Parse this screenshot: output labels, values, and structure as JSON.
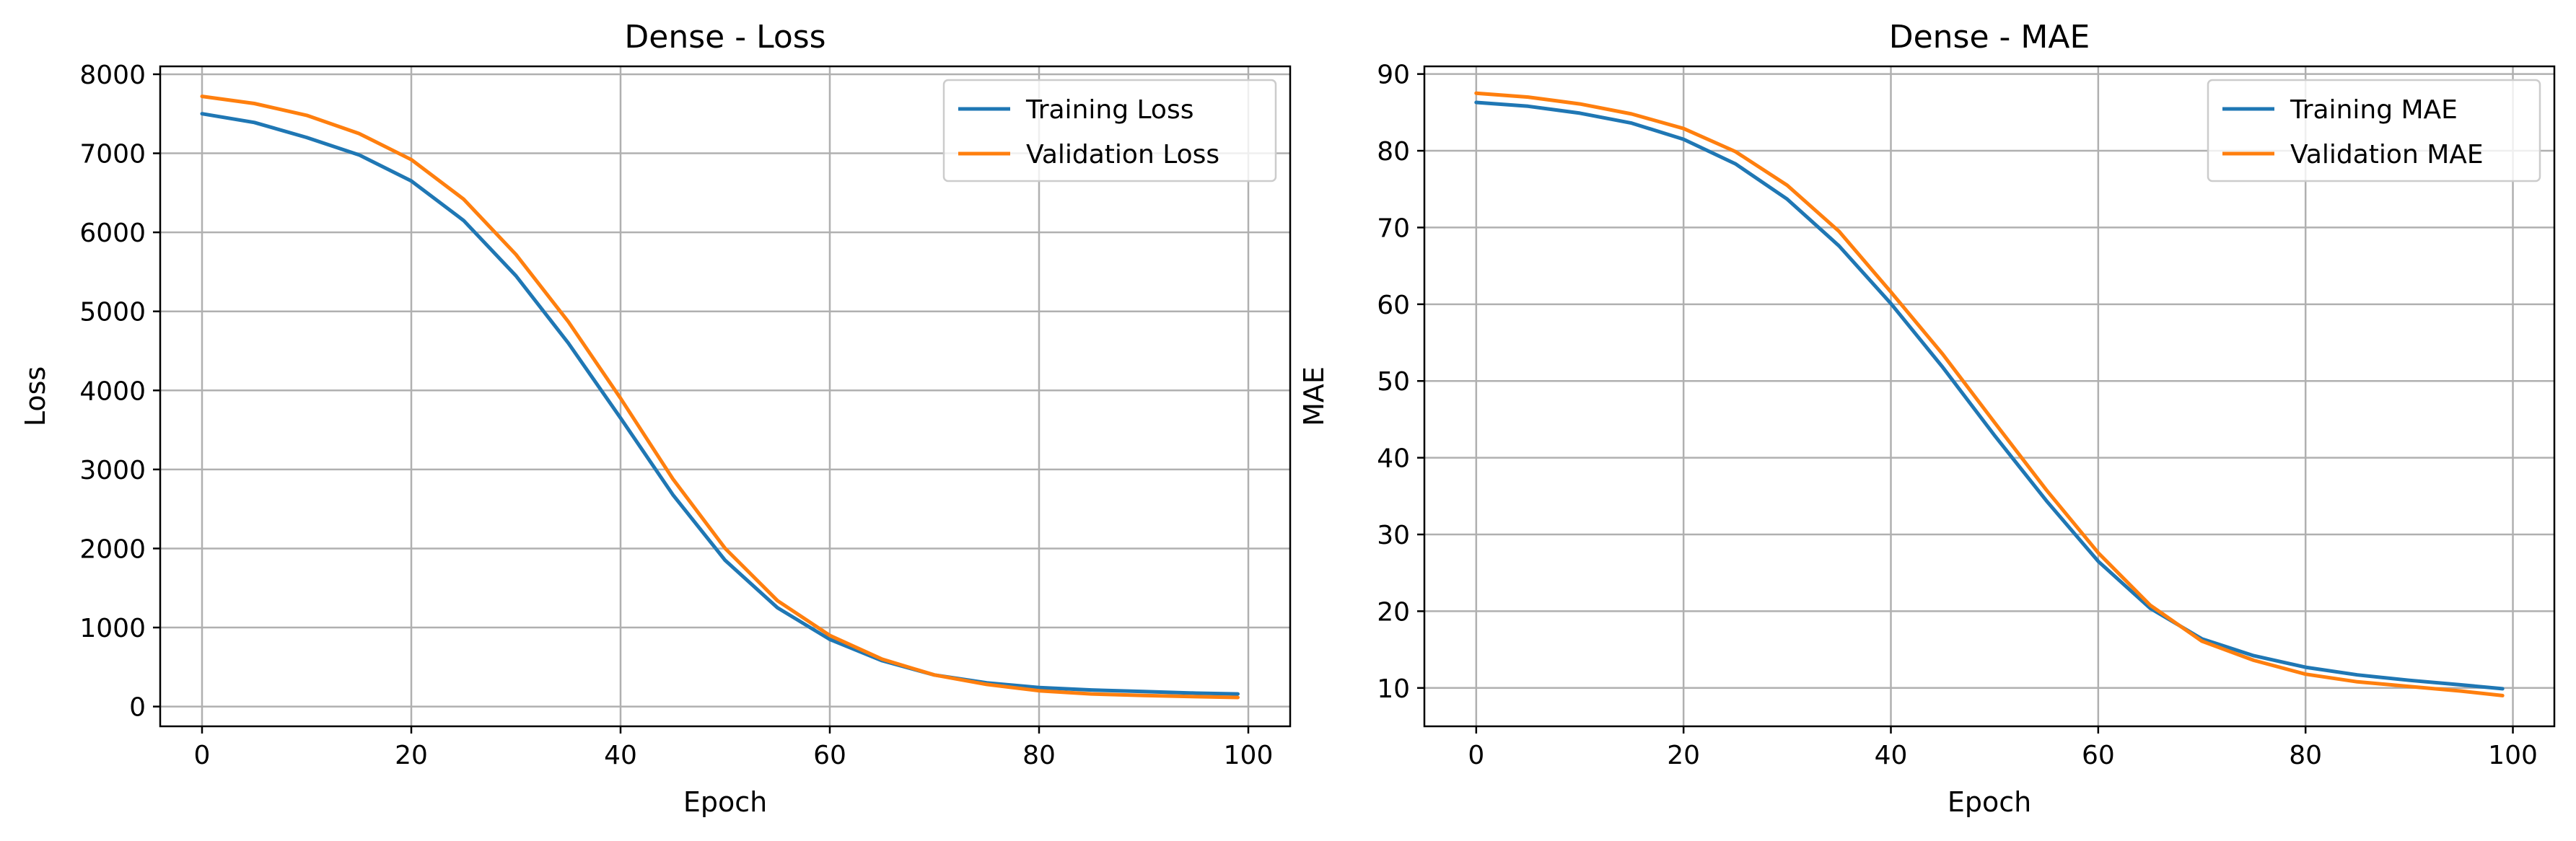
{
  "chart_data": [
    {
      "type": "line",
      "title": "Dense - Loss",
      "xlabel": "Epoch",
      "ylabel": "Loss",
      "xlim": [
        -4,
        104
      ],
      "ylim": [
        -250,
        8100
      ],
      "xticks": [
        0,
        20,
        40,
        60,
        80,
        100
      ],
      "yticks": [
        0,
        1000,
        2000,
        3000,
        4000,
        5000,
        6000,
        7000,
        8000
      ],
      "grid": true,
      "legend_position": "upper right",
      "series": [
        {
          "name": "Training Loss",
          "color": "#1f77b4",
          "x": [
            0,
            5,
            10,
            15,
            20,
            25,
            30,
            35,
            40,
            45,
            50,
            55,
            60,
            65,
            70,
            75,
            80,
            85,
            90,
            95,
            99
          ],
          "values": [
            7500,
            7390,
            7200,
            6980,
            6650,
            6150,
            5450,
            4600,
            3650,
            2680,
            1850,
            1250,
            850,
            580,
            400,
            300,
            240,
            210,
            190,
            170,
            160
          ]
        },
        {
          "name": "Validation Loss",
          "color": "#ff7f0e",
          "x": [
            0,
            5,
            10,
            15,
            20,
            25,
            30,
            35,
            40,
            45,
            50,
            55,
            60,
            65,
            70,
            75,
            80,
            85,
            90,
            95,
            99
          ],
          "values": [
            7720,
            7630,
            7480,
            7250,
            6920,
            6420,
            5720,
            4870,
            3900,
            2880,
            2000,
            1340,
            900,
            600,
            400,
            280,
            200,
            160,
            140,
            125,
            115
          ]
        }
      ]
    },
    {
      "type": "line",
      "title": "Dense - MAE",
      "xlabel": "Epoch",
      "ylabel": "MAE",
      "xlim": [
        -5,
        104
      ],
      "ylim": [
        5,
        91
      ],
      "xticks": [
        0,
        20,
        40,
        60,
        80,
        100
      ],
      "yticks": [
        10,
        20,
        30,
        40,
        50,
        60,
        70,
        80,
        90
      ],
      "grid": true,
      "legend_position": "upper right",
      "series": [
        {
          "name": "Training MAE",
          "color": "#1f77b4",
          "x": [
            0,
            5,
            10,
            15,
            20,
            25,
            30,
            35,
            40,
            45,
            50,
            55,
            60,
            65,
            70,
            75,
            80,
            85,
            90,
            95,
            99
          ],
          "values": [
            86.3,
            85.8,
            84.9,
            83.6,
            81.5,
            78.3,
            73.7,
            67.6,
            60.1,
            51.8,
            42.9,
            34.4,
            26.5,
            20.4,
            16.4,
            14.2,
            12.7,
            11.7,
            11.0,
            10.4,
            9.9
          ]
        },
        {
          "name": "Validation MAE",
          "color": "#ff7f0e",
          "x": [
            0,
            5,
            10,
            15,
            20,
            25,
            30,
            35,
            40,
            45,
            50,
            55,
            60,
            65,
            70,
            75,
            80,
            85,
            90,
            95,
            99
          ],
          "values": [
            87.5,
            87.0,
            86.1,
            84.8,
            82.9,
            79.9,
            75.5,
            69.5,
            61.6,
            53.5,
            44.6,
            35.8,
            27.6,
            20.8,
            16.1,
            13.6,
            11.8,
            10.8,
            10.2,
            9.6,
            9.0
          ]
        }
      ]
    }
  ]
}
